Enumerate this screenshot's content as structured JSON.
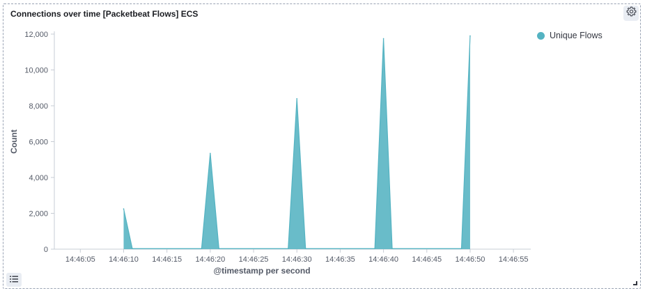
{
  "panel": {
    "title": "Connections over time [Packetbeat Flows] ECS",
    "options_icon": "gear-icon",
    "legend_toggle_icon": "list-icon"
  },
  "chart_data": {
    "type": "area",
    "xlabel": "@timestamp per second",
    "ylabel": "Count",
    "ylim": [
      0,
      12000
    ],
    "yticks": [
      0,
      2000,
      4000,
      6000,
      8000,
      10000,
      12000
    ],
    "ytick_labels": [
      "0",
      "2,000",
      "4,000",
      "6,000",
      "8,000",
      "10,000",
      "12,000"
    ],
    "xtick_labels": [
      "14:46:05",
      "14:46:10",
      "14:46:15",
      "14:46:20",
      "14:46:25",
      "14:46:30",
      "14:46:35",
      "14:46:40",
      "14:46:45",
      "14:46:50",
      "14:46:55"
    ],
    "xlim": [
      "14:46:02",
      "14:46:57"
    ],
    "grid": false,
    "legend_position": "top-right",
    "series": [
      {
        "name": "Unique Flows",
        "color": "#54b3c2",
        "x": [
          "14:46:10",
          "14:46:11",
          "14:46:19",
          "14:46:20",
          "14:46:21",
          "14:46:29",
          "14:46:30",
          "14:46:31",
          "14:46:39",
          "14:46:40",
          "14:46:41",
          "14:46:49",
          "14:46:50"
        ],
        "values": [
          2250,
          30,
          30,
          5350,
          30,
          30,
          8400,
          30,
          30,
          11750,
          30,
          30,
          11900
        ]
      }
    ]
  }
}
